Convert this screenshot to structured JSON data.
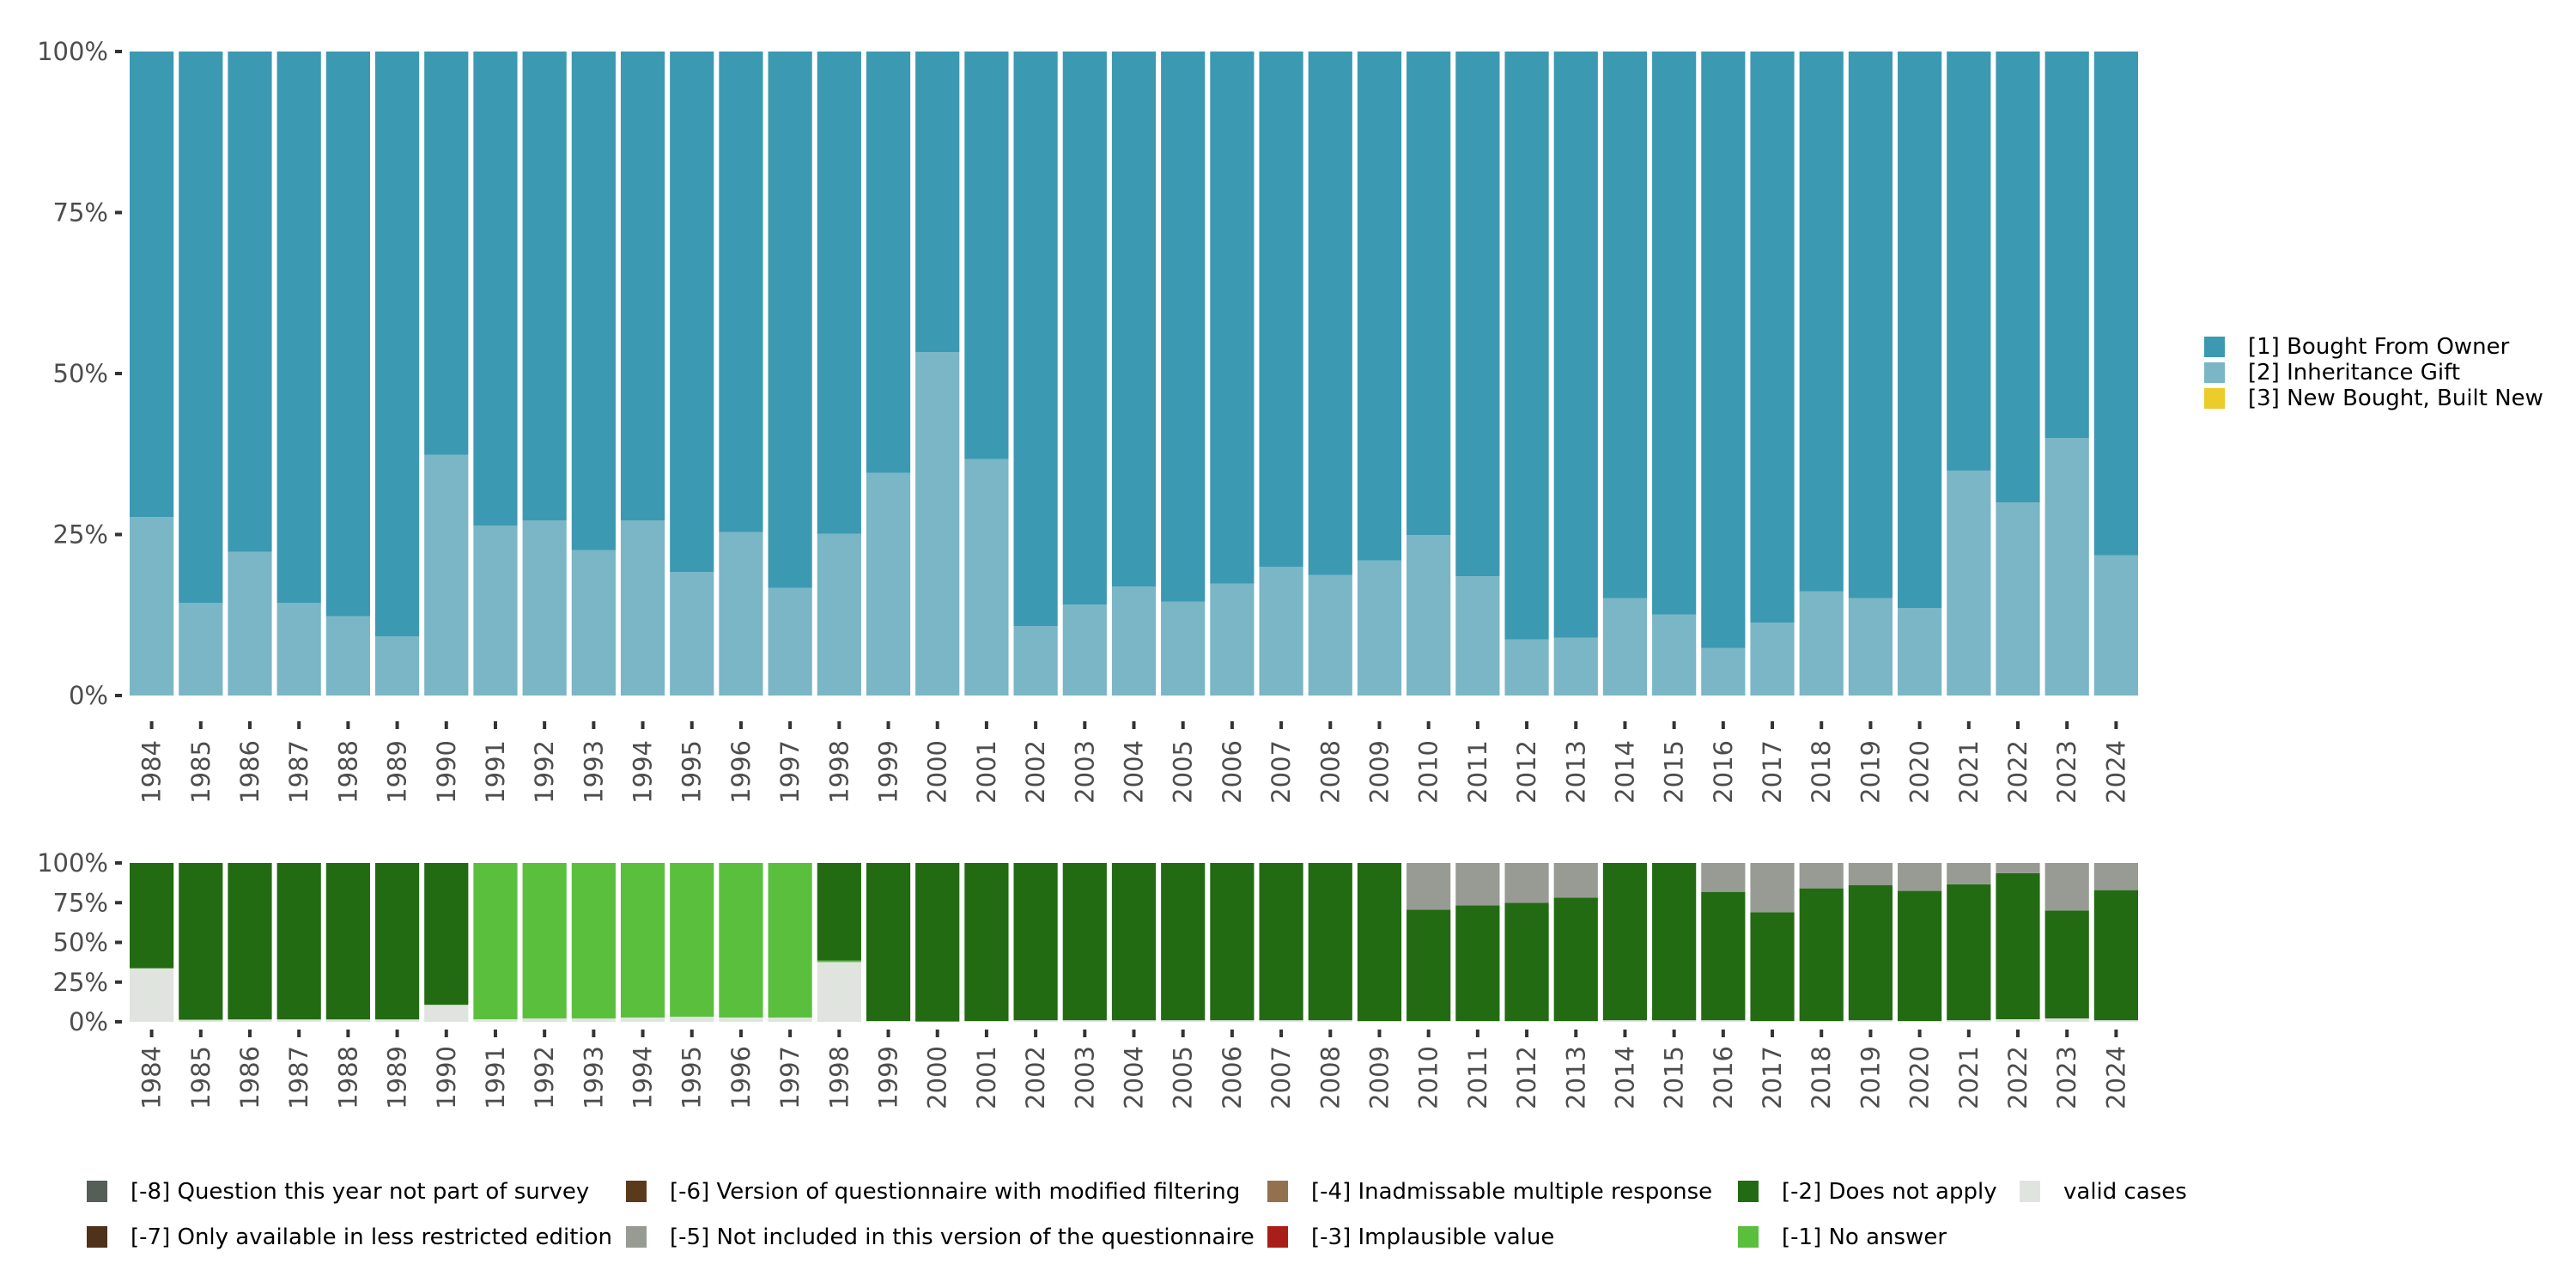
{
  "chart_data": [
    {
      "type": "bar",
      "stacked": true,
      "title": "",
      "xlabel": "",
      "ylabel": "",
      "ylim": [
        0,
        100
      ],
      "y_ticks": [
        "0%",
        "25%",
        "50%",
        "75%",
        "100%"
      ],
      "y_tick_values": [
        0,
        25,
        50,
        75,
        100
      ],
      "grid": false,
      "legend_position": "right",
      "categories": [
        "1984",
        "1985",
        "1986",
        "1987",
        "1988",
        "1989",
        "1990",
        "1991",
        "1992",
        "1993",
        "1994",
        "1995",
        "1996",
        "1997",
        "1998",
        "1999",
        "2000",
        "2001",
        "2002",
        "2003",
        "2004",
        "2005",
        "2006",
        "2007",
        "2008",
        "2009",
        "2010",
        "2011",
        "2012",
        "2013",
        "2014",
        "2015",
        "2016",
        "2017",
        "2018",
        "2019",
        "2020",
        "2021",
        "2022",
        "2023",
        "2024"
      ],
      "series": [
        {
          "name": "[2] Inheritance Gift",
          "color": "#7ab6c5",
          "values": [
            27.7,
            14.4,
            22.3,
            14.4,
            12.3,
            9.2,
            37.4,
            26.4,
            27.2,
            22.6,
            27.2,
            19.2,
            25.4,
            16.7,
            25.1,
            34.6,
            53.3,
            36.7,
            10.8,
            14.1,
            16.9,
            14.6,
            17.4,
            20.0,
            18.7,
            21.0,
            24.9,
            18.5,
            8.7,
            9.0,
            15.1,
            12.6,
            7.4,
            11.3,
            16.2,
            15.1,
            13.6,
            34.9,
            30.0,
            40.0,
            21.8
          ]
        },
        {
          "name": "[1] Bought From Owner",
          "color": "#3c99b2",
          "values": [
            72.3,
            85.6,
            77.7,
            85.6,
            87.7,
            90.8,
            62.6,
            73.6,
            72.8,
            77.4,
            72.8,
            80.8,
            74.6,
            83.3,
            74.9,
            65.4,
            46.7,
            63.3,
            89.2,
            85.9,
            83.1,
            85.4,
            82.6,
            80.0,
            81.3,
            79.0,
            75.1,
            81.5,
            91.3,
            91.0,
            84.9,
            87.4,
            92.6,
            88.7,
            83.8,
            84.9,
            86.4,
            65.1,
            70.0,
            60.0,
            78.2
          ]
        },
        {
          "name": "[3] New Bought, Built New",
          "color": "#ebcc2a",
          "values": [
            0,
            0,
            0,
            0,
            0,
            0,
            0,
            0,
            0,
            0,
            0,
            0,
            0,
            0,
            0,
            0,
            0,
            0,
            0,
            0,
            0,
            0,
            0,
            0,
            0,
            0,
            0,
            0,
            0,
            0,
            0,
            0,
            0,
            0,
            0,
            0,
            0,
            0,
            0,
            0,
            0
          ]
        }
      ],
      "legend": [
        {
          "label": "[1] Bought From Owner",
          "color": "#3c99b2"
        },
        {
          "label": "[2] Inheritance Gift",
          "color": "#7ab6c5"
        },
        {
          "label": "[3] New Bought, Built New",
          "color": "#ebcc2a"
        }
      ]
    },
    {
      "type": "bar",
      "stacked": true,
      "title": "",
      "xlabel": "",
      "ylabel": "",
      "ylim": [
        0,
        100
      ],
      "y_ticks": [
        "0%",
        "25%",
        "50%",
        "75%",
        "100%"
      ],
      "y_tick_values": [
        0,
        25,
        50,
        75,
        100
      ],
      "grid": false,
      "legend_position": "bottom",
      "categories": [
        "1984",
        "1985",
        "1986",
        "1987",
        "1988",
        "1989",
        "1990",
        "1991",
        "1992",
        "1993",
        "1994",
        "1995",
        "1996",
        "1997",
        "1998",
        "1999",
        "2000",
        "2001",
        "2002",
        "2003",
        "2004",
        "2005",
        "2006",
        "2007",
        "2008",
        "2009",
        "2010",
        "2011",
        "2012",
        "2013",
        "2014",
        "2015",
        "2016",
        "2017",
        "2018",
        "2019",
        "2020",
        "2021",
        "2022",
        "2023",
        "2024"
      ],
      "series": [
        {
          "name": "valid cases",
          "color": "#e0e4df",
          "values": [
            33.7,
            1.0,
            1.5,
            1.5,
            1.5,
            1.5,
            10.7,
            1.6,
            2.1,
            2.1,
            2.7,
            3.2,
            2.7,
            2.7,
            37.6,
            0.5,
            0.2,
            0.5,
            1.0,
            1.0,
            1.0,
            1.0,
            1.0,
            1.0,
            1.0,
            0.5,
            0.5,
            0.5,
            0.5,
            0.5,
            1.0,
            1.0,
            1.0,
            0.5,
            0.5,
            1.0,
            0.5,
            1.0,
            1.6,
            2.1,
            1.0
          ]
        },
        {
          "name": "[-1] No answer",
          "color": "#5bbf3e",
          "values": [
            0,
            0.5,
            0,
            0,
            0,
            0,
            0,
            98.4,
            97.9,
            97.9,
            97.3,
            96.8,
            97.3,
            97.3,
            1.0,
            0,
            0,
            0,
            0,
            0,
            0,
            0,
            0,
            0,
            0,
            0,
            0,
            0,
            0,
            0,
            0,
            0,
            0,
            0,
            0,
            0,
            0,
            0,
            0,
            0,
            0
          ]
        },
        {
          "name": "[-2] Does not apply",
          "color": "#226b12",
          "values": [
            66.3,
            98.5,
            98.5,
            98.5,
            98.5,
            98.5,
            89.3,
            0,
            0,
            0,
            0,
            0,
            0,
            0,
            61.4,
            99.5,
            99.8,
            99.5,
            99.0,
            99.0,
            99.0,
            99.0,
            99.0,
            99.0,
            99.0,
            99.5,
            70.1,
            72.8,
            74.4,
            77.6,
            99.0,
            99.0,
            80.8,
            68.5,
            83.5,
            85.1,
            81.9,
            85.6,
            92.0,
            68.0,
            81.9
          ]
        },
        {
          "name": "[-5] Not included in this version of the questionnaire",
          "color": "#989b94",
          "values": [
            0,
            0,
            0,
            0,
            0,
            0,
            0,
            0,
            0,
            0,
            0,
            0,
            0,
            0,
            0,
            0,
            0,
            0,
            0,
            0,
            0,
            0,
            0,
            0,
            0,
            0,
            29.4,
            26.7,
            25.1,
            21.9,
            0,
            0,
            18.2,
            31.0,
            16.0,
            13.9,
            17.6,
            13.4,
            6.4,
            29.9,
            17.1
          ]
        }
      ],
      "legend": [
        {
          "label": "[-8] Question this year not part of survey",
          "color": "#565e58"
        },
        {
          "label": "[-7] Only available in less restricted edition",
          "color": "#4f3219"
        },
        {
          "label": "[-6] Version of questionnaire with modified filtering",
          "color": "#5b3a1b"
        },
        {
          "label": "[-5] Not included in this version of the questionnaire",
          "color": "#989b94"
        },
        {
          "label": "[-4] Inadmissable multiple response",
          "color": "#93714e"
        },
        {
          "label": "[-3] Implausible value",
          "color": "#a91e19"
        },
        {
          "label": "[-2] Does not apply",
          "color": "#226b12"
        },
        {
          "label": "[-1] No answer",
          "color": "#5bbf3e"
        },
        {
          "label": "valid cases",
          "color": "#e0e4df"
        }
      ]
    }
  ]
}
